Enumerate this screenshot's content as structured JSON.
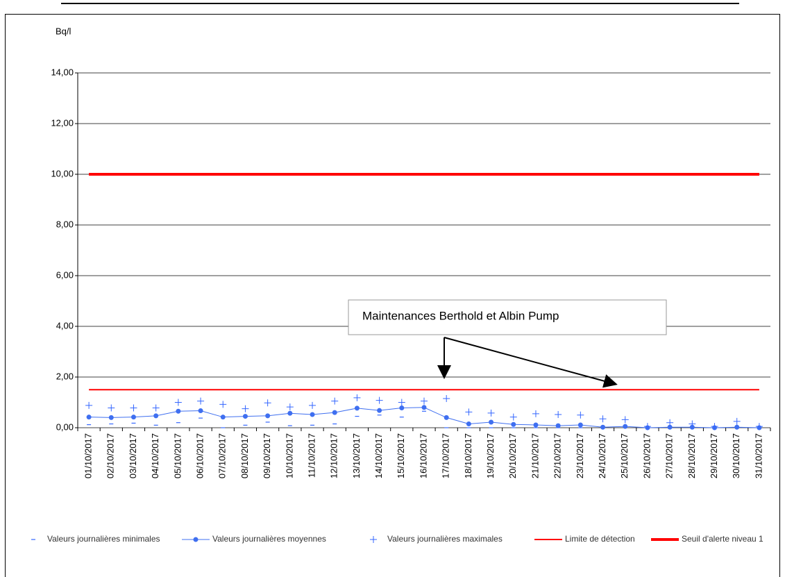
{
  "chart_data": {
    "type": "line",
    "y_label": "Bq/l",
    "categories": [
      "01/10/2017",
      "02/10/2017",
      "03/10/2017",
      "04/10/2017",
      "05/10/2017",
      "06/10/2017",
      "07/10/2017",
      "08/10/2017",
      "09/10/2017",
      "10/10/2017",
      "11/10/2017",
      "12/10/2017",
      "13/10/2017",
      "14/10/2017",
      "15/10/2017",
      "16/10/2017",
      "17/10/2017",
      "18/10/2017",
      "19/10/2017",
      "20/10/2017",
      "21/10/2017",
      "22/10/2017",
      "23/10/2017",
      "24/10/2017",
      "25/10/2017",
      "26/10/2017",
      "27/10/2017",
      "28/10/2017",
      "29/10/2017",
      "30/10/2017",
      "31/10/2017"
    ],
    "series": [
      {
        "name": "Valeurs journalières minimales",
        "color": "#3366ff",
        "marker": "dash",
        "line": false,
        "values": [
          0.12,
          0.15,
          0.18,
          0.1,
          0.2,
          0.38,
          0.0,
          0.1,
          0.22,
          0.08,
          0.1,
          0.15,
          0.45,
          0.5,
          0.42,
          0.65,
          0.0,
          0.0,
          0.0,
          0.0,
          0.0,
          0.0,
          0.0,
          0.0,
          0.0,
          0.0,
          0.0,
          0.0,
          0.0,
          0.0,
          0.0
        ]
      },
      {
        "name": "Valeurs journalières moyennes",
        "color": "#3f6ff0",
        "marker": "dot",
        "line": true,
        "values": [
          0.42,
          0.4,
          0.42,
          0.47,
          0.65,
          0.67,
          0.42,
          0.45,
          0.47,
          0.57,
          0.52,
          0.6,
          0.77,
          0.68,
          0.78,
          0.8,
          0.4,
          0.15,
          0.22,
          0.13,
          0.11,
          0.08,
          0.11,
          0.02,
          0.05,
          0.0,
          0.02,
          0.02,
          0.0,
          0.02,
          0.0
        ]
      },
      {
        "name": "Valeurs journalières maximales",
        "color": "#3366ff",
        "marker": "plus",
        "line": false,
        "values": [
          0.88,
          0.78,
          0.78,
          0.78,
          1.0,
          1.05,
          0.92,
          0.75,
          0.98,
          0.82,
          0.88,
          1.05,
          1.18,
          1.08,
          1.0,
          1.05,
          1.15,
          0.62,
          0.58,
          0.42,
          0.55,
          0.52,
          0.5,
          0.35,
          0.32,
          0.05,
          0.2,
          0.15,
          0.05,
          0.25,
          0.05
        ]
      },
      {
        "name": "Limite de détection",
        "color": "#ff0000",
        "marker": "none",
        "line": true,
        "width": 2,
        "values": [
          1.5,
          1.5,
          1.5,
          1.5,
          1.5,
          1.5,
          1.5,
          1.5,
          1.5,
          1.5,
          1.5,
          1.5,
          1.5,
          1.5,
          1.5,
          1.5,
          1.5,
          1.5,
          1.5,
          1.5,
          1.5,
          1.5,
          1.5,
          1.5,
          1.5,
          1.5,
          1.5,
          1.5,
          1.5,
          1.5,
          1.5
        ]
      },
      {
        "name": "Seuil d'alerte niveau 1",
        "color": "#ff0000",
        "marker": "none",
        "line": true,
        "width": 4,
        "values": [
          10,
          10,
          10,
          10,
          10,
          10,
          10,
          10,
          10,
          10,
          10,
          10,
          10,
          10,
          10,
          10,
          10,
          10,
          10,
          10,
          10,
          10,
          10,
          10,
          10,
          10,
          10,
          10,
          10,
          10,
          10
        ]
      }
    ],
    "ylim": [
      0,
      14
    ],
    "yticks": [
      {
        "value": 0,
        "label": "0,00"
      },
      {
        "value": 2,
        "label": "2,00"
      },
      {
        "value": 4,
        "label": "4,00"
      },
      {
        "value": 6,
        "label": "6,00"
      },
      {
        "value": 8,
        "label": "8,00"
      },
      {
        "value": 10,
        "label": "10,00"
      },
      {
        "value": 12,
        "label": "12,00"
      },
      {
        "value": 14,
        "label": "14,00"
      }
    ],
    "grid": true,
    "legend": "bottom",
    "annotations": [
      {
        "text": "Maintenances Berthold et Albin Pump"
      }
    ]
  }
}
